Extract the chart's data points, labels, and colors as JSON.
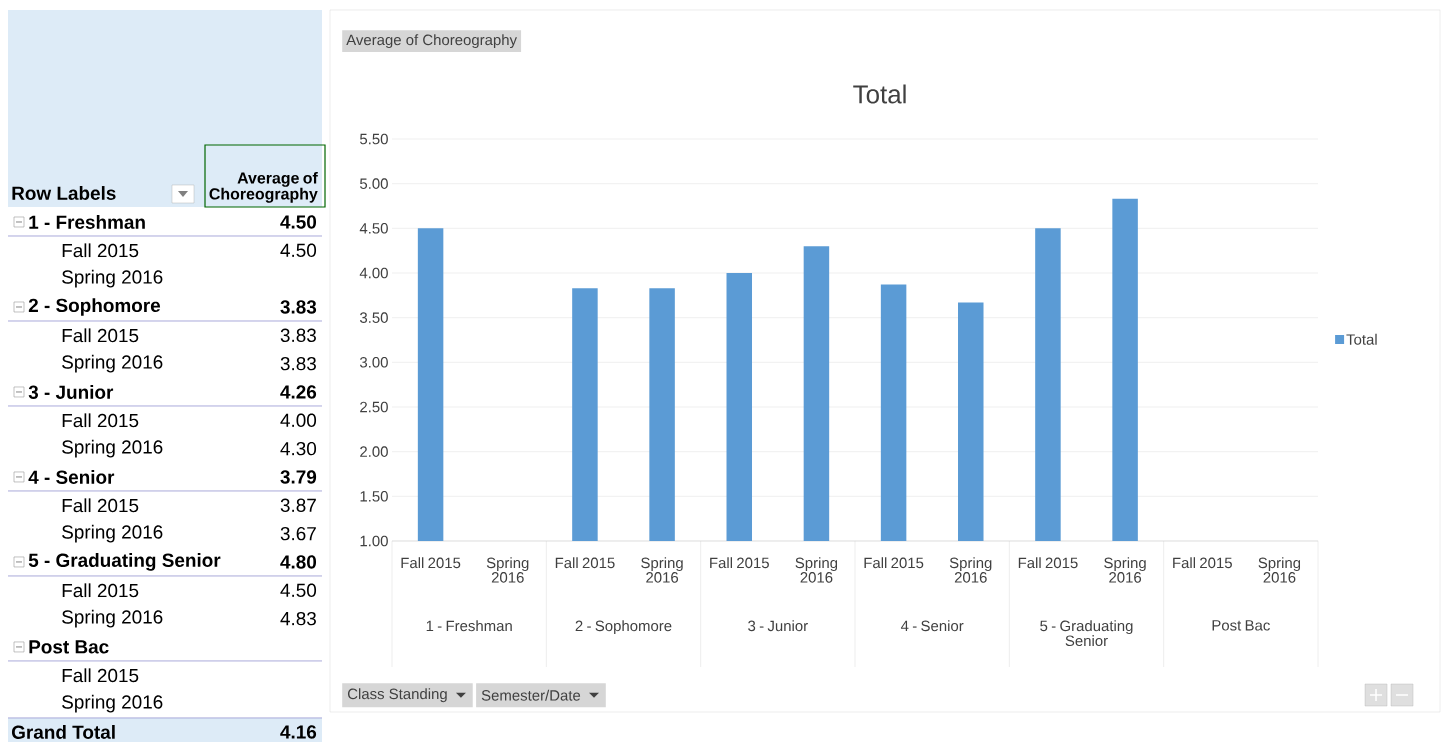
{
  "chart_data": [
    {
      "type": "other",
      "xlabel": "Row Labels",
      "ylabel": "Average of Choreography",
      "categories": [
        "1 - Freshman",
        "Fall 2015",
        "Spring 2016",
        "2 - Sophomore",
        "Fall 2015",
        "Spring 2016",
        "3 - Junior",
        "Fall 2015",
        "Spring 2016",
        "4 - Senior",
        "Fall 2015",
        "Spring 2016",
        "5 - Graduating Senior",
        "Fall 2015",
        "Spring 2016",
        "Post Bac",
        "Fall 2015",
        "Spring 2016",
        "Grand Total"
      ],
      "value_labels": [
        "4.50",
        "4.50",
        null,
        "3.83",
        "3.83",
        "3.83",
        "4.26",
        "4.00",
        "4.30",
        "3.79",
        "3.87",
        "3.67",
        "4.80",
        "4.50",
        "4.83",
        null,
        null,
        null,
        "4.16"
      ]
    },
    {
      "type": "bar",
      "title": "Total",
      "ylabel": "Average of Choreography",
      "categories": [
        "Fall 2015",
        "Spring 2016",
        "Fall 2015",
        "Spring 2016",
        "Fall 2015",
        "Spring 2016",
        "Fall 2015",
        "Spring 2016",
        "Fall 2015",
        "Spring 2016",
        "Fall 2015",
        "Spring 2016"
      ],
      "series": [
        {
          "name": "Total",
          "color": "#5b9bd5",
          "values": [
            4.5,
            null,
            3.83,
            3.83,
            4.0,
            4.3,
            3.87,
            3.67,
            4.5,
            4.83,
            null,
            null
          ]
        }
      ],
      "ylim": [
        1,
        5.5
      ],
      "yticks": [
        {
          "value": 1,
          "label": "1.00"
        },
        {
          "value": 1.5,
          "label": "1.50"
        },
        {
          "value": 2,
          "label": "2.00"
        },
        {
          "value": 2.5,
          "label": "2.50"
        },
        {
          "value": 3,
          "label": "3.00"
        },
        {
          "value": 3.5,
          "label": "3.50"
        },
        {
          "value": 4,
          "label": "4.00"
        },
        {
          "value": 4.5,
          "label": "4.50"
        },
        {
          "value": 5,
          "label": "5.00"
        },
        {
          "value": 5.5,
          "label": "5.50"
        }
      ],
      "grid": "y",
      "legend": "right",
      "annotations": [
        "1 - Freshman",
        "2 - Sophomore",
        "3 - Junior",
        "4 - Senior",
        "5 - Graduating Senior",
        "Post Bac",
        "Class Standing",
        "Semester/Date"
      ]
    }
  ]
}
